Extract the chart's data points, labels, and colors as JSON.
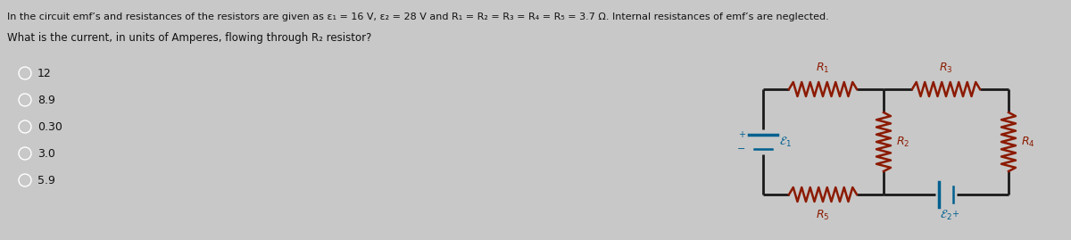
{
  "title_line1": "In the circuit emf’s and resistances of the resistors are given as ε₁ = 16 V, ε₂ = 28 V and R₁ = R₂ = R₃ = R₄ = R₅ = 3.7 Ω. Internal resistances of emf’s are neglected.",
  "title_line2": "What is the current, in units of Amperes, flowing through R₂ resistor?",
  "options": [
    "12",
    "8.9",
    "0.30",
    "3.0",
    "5.9"
  ],
  "bg_color": "#c8c8c8",
  "wire_color": "#1a1a1a",
  "resistor_color": "#8B1A00",
  "emf_color": "#006090",
  "text_color": "#111111",
  "label_red": "#8B1A00",
  "label_blue": "#006090"
}
